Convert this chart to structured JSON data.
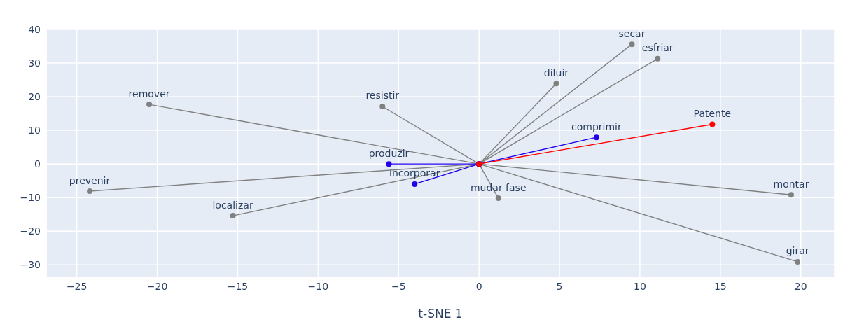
{
  "chart_data": {
    "type": "line",
    "xlabel": "t-SNE 1",
    "xlim": [
      -26.9,
      22.1
    ],
    "xticks": [
      -25,
      -20,
      -15,
      -10,
      -5,
      0,
      5,
      10,
      15,
      20
    ],
    "ylim": [
      -33.7,
      40
    ],
    "yticks": [
      -30,
      -20,
      -10,
      0,
      10,
      20,
      30,
      40
    ],
    "grid": true,
    "legend": false,
    "marker": "circle",
    "line_style": "solid",
    "series": [
      {
        "name": "remover",
        "color": "#808080",
        "x": [
          0,
          -20.5
        ],
        "values": [
          0,
          17.7
        ]
      },
      {
        "name": "resistir",
        "color": "#808080",
        "x": [
          0,
          -6.0
        ],
        "values": [
          0,
          17.1
        ]
      },
      {
        "name": "prevenir",
        "color": "#808080",
        "x": [
          0,
          -24.2
        ],
        "values": [
          0,
          -8.1
        ]
      },
      {
        "name": "localizar",
        "color": "#808080",
        "x": [
          0,
          -15.3
        ],
        "values": [
          0,
          -15.4
        ]
      },
      {
        "name": "diluir",
        "color": "#808080",
        "x": [
          0,
          4.8
        ],
        "values": [
          0,
          23.9
        ]
      },
      {
        "name": "secar",
        "color": "#808080",
        "x": [
          0,
          9.5
        ],
        "values": [
          0,
          35.6
        ]
      },
      {
        "name": "esfriar",
        "color": "#808080",
        "x": [
          0,
          11.1
        ],
        "values": [
          0,
          31.3
        ]
      },
      {
        "name": "mudar fase",
        "color": "#808080",
        "x": [
          0,
          1.2
        ],
        "values": [
          0,
          -10.2
        ]
      },
      {
        "name": "montar",
        "color": "#808080",
        "x": [
          0,
          19.4
        ],
        "values": [
          0,
          -9.2
        ]
      },
      {
        "name": "girar",
        "color": "#808080",
        "x": [
          0,
          19.8
        ],
        "values": [
          0,
          -29.1
        ]
      },
      {
        "name": "produzir",
        "color": "#2200ee",
        "x": [
          0,
          -5.6
        ],
        "values": [
          0,
          0
        ]
      },
      {
        "name": "incorporar",
        "color": "#2200ee",
        "x": [
          0,
          -4.0
        ],
        "values": [
          0,
          -6.0
        ]
      },
      {
        "name": "comprimir",
        "color": "#2200ee",
        "x": [
          0,
          7.3
        ],
        "values": [
          0,
          7.9
        ]
      },
      {
        "name": "Patente",
        "color": "#ff0000",
        "x": [
          0,
          14.5
        ],
        "values": [
          0,
          11.8
        ]
      }
    ]
  }
}
